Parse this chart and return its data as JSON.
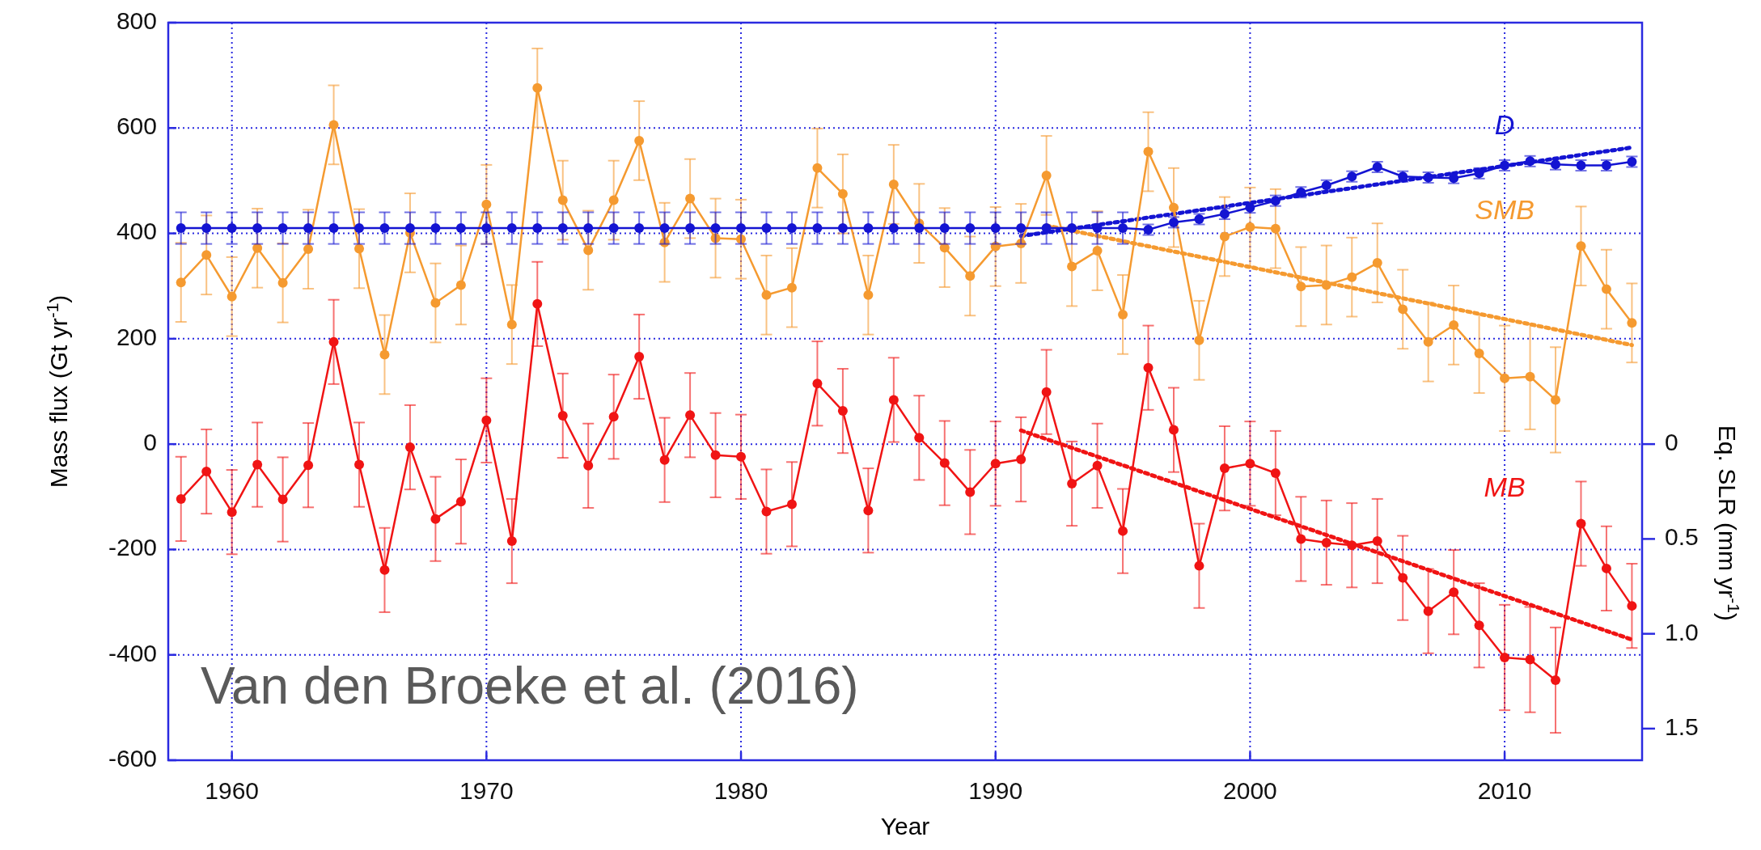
{
  "chart_data": {
    "type": "line",
    "xlabel": "Year",
    "ylabel": "Mass flux (Gt yr$^{-1}$)",
    "y2label": "Eq. SLR (mm yr$^{-1}$)",
    "x": [
      1958,
      1959,
      1960,
      1961,
      1962,
      1963,
      1964,
      1965,
      1966,
      1967,
      1968,
      1969,
      1970,
      1971,
      1972,
      1973,
      1974,
      1975,
      1976,
      1977,
      1978,
      1979,
      1980,
      1981,
      1982,
      1983,
      1984,
      1985,
      1986,
      1987,
      1988,
      1989,
      1990,
      1991,
      1992,
      1993,
      1994,
      1995,
      1996,
      1997,
      1998,
      1999,
      2000,
      2001,
      2002,
      2003,
      2004,
      2005,
      2006,
      2007,
      2008,
      2009,
      2010,
      2011,
      2012,
      2013,
      2014,
      2015
    ],
    "xlim": [
      1957.5,
      2015.4
    ],
    "xticks": [
      1960,
      1970,
      1980,
      1990,
      2000,
      2010
    ],
    "ylim": [
      -600,
      800
    ],
    "yticks": [
      -600,
      -400,
      -200,
      0,
      200,
      400,
      600,
      800
    ],
    "y2lim": [
      1.6667,
      -2.2222
    ],
    "y2ticks": [
      0,
      0.5,
      {
        "value": 1,
        "label": "1.0"
      },
      1.5
    ],
    "grid": true,
    "marker": "circle",
    "series": [
      {
        "name": "D",
        "color": "#1414d2",
        "values": [
          410,
          410,
          410,
          410,
          410,
          410,
          410,
          410,
          410,
          410,
          410,
          410,
          410,
          410,
          410,
          410,
          410,
          410,
          410,
          410,
          410,
          410,
          410,
          410,
          410,
          410,
          410,
          410,
          410,
          410,
          410,
          410,
          410,
          410,
          410,
          410,
          410,
          410,
          407,
          421,
          427,
          437,
          449,
          462,
          478,
          491,
          508,
          526,
          508,
          506,
          505,
          514,
          529,
          537,
          531,
          529,
          529,
          536
        ],
        "errors": [
          30,
          30,
          30,
          30,
          30,
          30,
          30,
          30,
          30,
          30,
          30,
          30,
          30,
          30,
          30,
          30,
          30,
          30,
          30,
          30,
          30,
          30,
          30,
          30,
          30,
          30,
          30,
          30,
          30,
          30,
          30,
          30,
          30,
          30,
          30,
          30,
          30,
          30,
          10,
          10,
          10,
          10,
          10,
          10,
          10,
          10,
          10,
          10,
          10,
          10,
          10,
          10,
          10,
          10,
          10,
          10,
          10,
          10
        ]
      },
      {
        "name": "SMB",
        "color": "#f59a30",
        "values": [
          307,
          359,
          280,
          372,
          306,
          370,
          606,
          371,
          170,
          401,
          268,
          302,
          455,
          227,
          676,
          463,
          368,
          463,
          576,
          383,
          466,
          391,
          389,
          283,
          297,
          524,
          475,
          283,
          493,
          419,
          373,
          319,
          375,
          381,
          510,
          337,
          367,
          246,
          555,
          449,
          197,
          394,
          412,
          409,
          299,
          302,
          317,
          344,
          256,
          194,
          226,
          172,
          125,
          128,
          84,
          376,
          294,
          230
        ],
        "errors": [
          75,
          75,
          75,
          75,
          75,
          75,
          75,
          75,
          75,
          75,
          75,
          75,
          75,
          75,
          75,
          75,
          75,
          75,
          75,
          75,
          75,
          75,
          75,
          75,
          75,
          75,
          75,
          75,
          75,
          75,
          75,
          75,
          75,
          75,
          75,
          75,
          75,
          75,
          75,
          75,
          75,
          75,
          75,
          75,
          75,
          75,
          75,
          75,
          75,
          75,
          75,
          75,
          100,
          100,
          100,
          75,
          75,
          75
        ]
      },
      {
        "name": "MB",
        "color": "#f01414",
        "values": [
          -104,
          -52,
          -129,
          -39,
          -105,
          -40,
          194,
          -39,
          -239,
          -6,
          -142,
          -109,
          45,
          -184,
          266,
          54,
          -41,
          52,
          166,
          -30,
          55,
          -21,
          -24,
          -128,
          -114,
          115,
          63,
          -126,
          84,
          12,
          -36,
          -91,
          -37,
          -29,
          99,
          -75,
          -41,
          -165,
          145,
          27,
          -231,
          -46,
          -37,
          -55,
          -180,
          -187,
          -192,
          -184,
          -254,
          -317,
          -281,
          -344,
          -405,
          -409,
          -448,
          -151,
          -236,
          -307
        ],
        "errors": [
          80,
          80,
          80,
          80,
          80,
          80,
          80,
          80,
          80,
          80,
          80,
          80,
          80,
          80,
          80,
          80,
          80,
          80,
          80,
          80,
          80,
          80,
          80,
          80,
          80,
          80,
          80,
          80,
          80,
          80,
          80,
          80,
          80,
          80,
          80,
          80,
          80,
          80,
          80,
          80,
          80,
          80,
          80,
          80,
          80,
          80,
          80,
          80,
          80,
          80,
          80,
          80,
          100,
          100,
          100,
          80,
          80,
          80
        ]
      },
      {
        "type": "line",
        "color": "#1414d2",
        "x": [
          1991,
          2015
        ],
        "values": [
          395,
          563
        ],
        "marker": "none",
        "line_style": "dotted"
      },
      {
        "type": "line",
        "color": "#f59a30",
        "x": [
          1992,
          2015
        ],
        "values": [
          415,
          188
        ],
        "marker": "none",
        "line_style": "dotted"
      },
      {
        "type": "line",
        "color": "#f01414",
        "x": [
          1991,
          2015
        ],
        "values": [
          26,
          -371
        ],
        "marker": "none",
        "line_style": "dotted"
      }
    ],
    "annotations": [
      "Van den Broeke et al. (2016)"
    ]
  }
}
